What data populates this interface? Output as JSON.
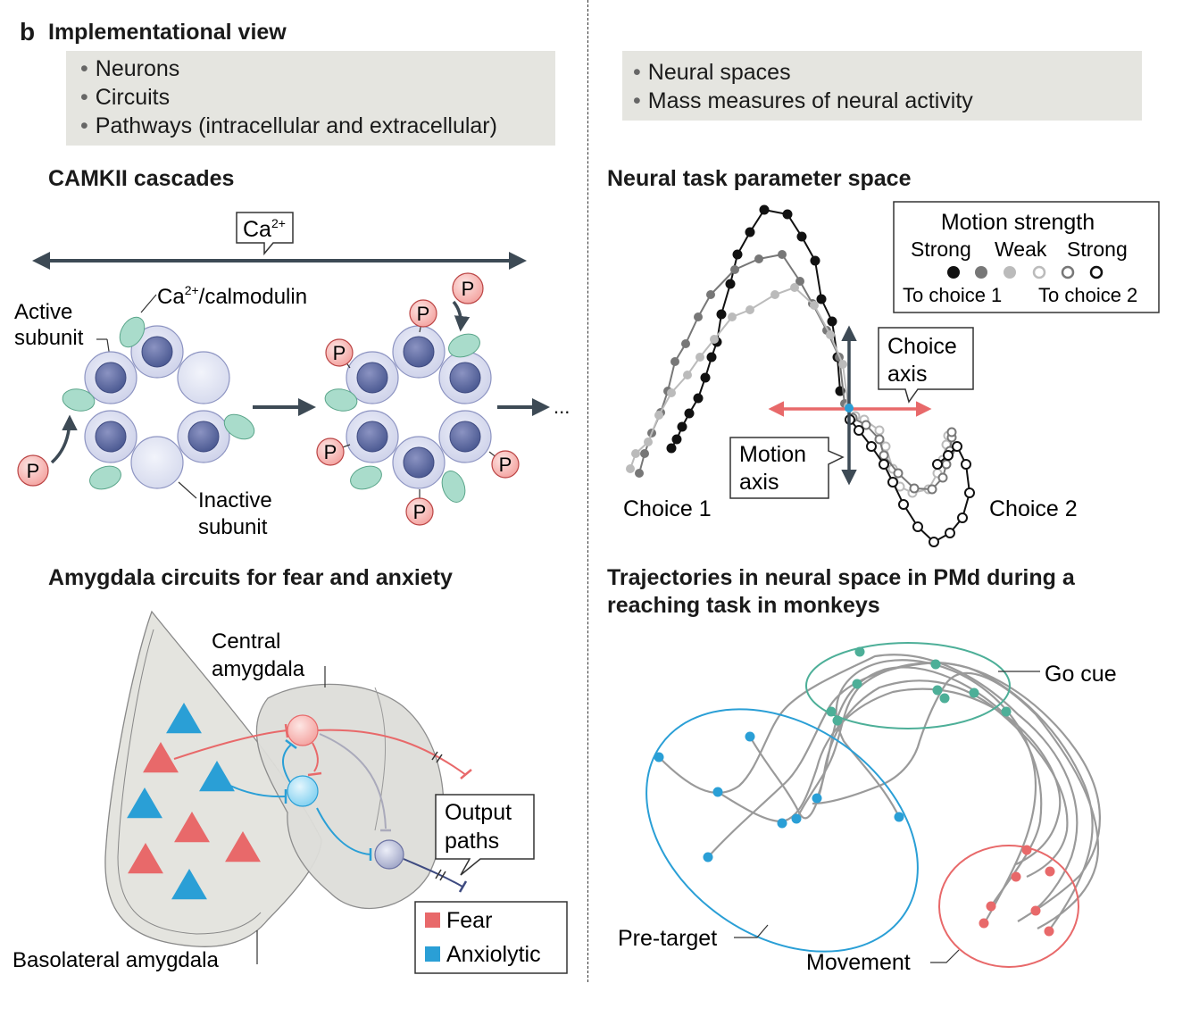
{
  "panel_label": "b",
  "title": "Implementational view",
  "left_box": {
    "items": [
      "Neurons",
      "Circuits",
      "Pathways (intracellular and extracellular)"
    ]
  },
  "right_box": {
    "items": [
      "Neural spaces",
      "Mass measures of neural activity"
    ]
  },
  "camkii": {
    "title": "CAMKII cascades",
    "ca_label": "Ca",
    "ca_sup": "2+",
    "calmodulin_pre": "Ca",
    "calmodulin_sup": "2+",
    "calmodulin_post": "/calmodulin",
    "active_line1": "Active",
    "active_line2": "subunit",
    "inactive_line1": "Inactive",
    "inactive_line2": "subunit",
    "phospho": "P",
    "ellipsis": "..."
  },
  "neural_space": {
    "title": "Neural task parameter space",
    "legend_title": "Motion strength",
    "legend_strong1": "Strong",
    "legend_weak": "Weak",
    "legend_strong2": "Strong",
    "legend_choice1": "To choice 1",
    "legend_choice2": "To choice 2",
    "choice_axis_line1": "Choice",
    "choice_axis_line2": "axis",
    "motion_axis_line1": "Motion",
    "motion_axis_line2": "axis",
    "choice1": "Choice 1",
    "choice2": "Choice 2"
  },
  "amygdala": {
    "title": "Amygdala circuits for fear and anxiety",
    "central_line1": "Central",
    "central_line2": "amygdala",
    "output_line1": "Output",
    "output_line2": "paths",
    "basolateral": "Basolateral amygdala",
    "legend_fear": "Fear",
    "legend_anxiolytic": "Anxiolytic",
    "colors": {
      "fear": "#e8696a",
      "anxiolytic": "#2a9fd6"
    }
  },
  "trajectories": {
    "title_line1": "Trajectories in neural space in PMd during a",
    "title_line2": "reaching task in monkeys",
    "go_cue": "Go cue",
    "pre_target": "Pre-target",
    "movement": "Movement",
    "colors": {
      "go_cue": "#4daf98",
      "pre_target": "#2a9fd6",
      "movement": "#e8696a"
    }
  }
}
